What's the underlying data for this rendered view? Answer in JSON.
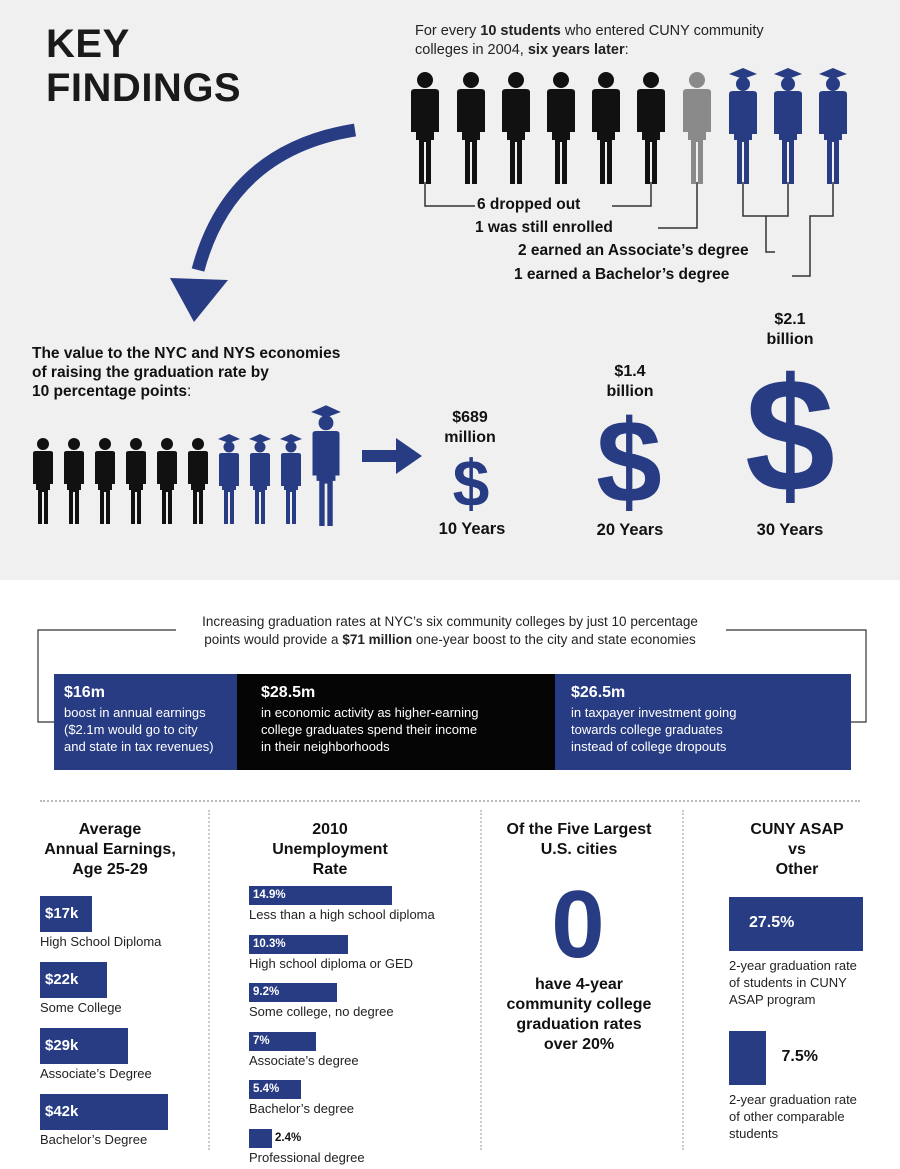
{
  "header": {
    "title_line1": "KEY",
    "title_line2": "FINDINGS"
  },
  "intro": {
    "p1": "For every ",
    "b1": "10 students",
    "p2": " who entered CUNY community colleges in 2004, ",
    "b2": "six years later",
    "p3": ":"
  },
  "outcomes": [
    "6 dropped out",
    "1 was still enrolled",
    "2 earned an Associate’s degree",
    "1 earned a Bachelor’s degree"
  ],
  "value_section": {
    "text_line1": "The value to the NYC and NYS economies",
    "text_line2": "of raising the graduation rate by",
    "text_line3": "10 percentage points",
    "text_colon": ":",
    "impacts": [
      {
        "amount": "$689",
        "unit": "million",
        "years": "10 Years"
      },
      {
        "amount": "$1.4",
        "unit": "billion",
        "years": "20 Years"
      },
      {
        "amount": "$2.1",
        "unit": "billion",
        "years": "30 Years"
      }
    ]
  },
  "boost": {
    "p1": "Increasing graduation rates at NYC’s six community colleges by just 10 percentage",
    "p2": "points would provide a ",
    "b1": "$71 million",
    "p3": " one-year boost to the city and state economies",
    "boxes": [
      {
        "amount": "$16m",
        "line1": "boost in annual earnings",
        "line2": "($2.1m would go to city",
        "line3": "and state in tax revenues)",
        "color": "#283c84"
      },
      {
        "amount": "$28.5m",
        "line1": "in economic activity as higher-earning",
        "line2": "college graduates spend their income",
        "line3": "in their neighborhoods",
        "color": "#050505"
      },
      {
        "amount": "$26.5m",
        "line1": "in taxpayer investment going",
        "line2": "towards college graduates",
        "line3": "instead of college dropouts",
        "color": "#283c84"
      }
    ]
  },
  "earnings": {
    "title1": "Average",
    "title2": "Annual Earnings,",
    "title3": "Age 25-29",
    "items": [
      {
        "value": "$17k",
        "label": "High School Diploma",
        "amount": 17
      },
      {
        "value": "$22k",
        "label": "Some College",
        "amount": 22
      },
      {
        "value": "$29k",
        "label": "Associate’s Degree",
        "amount": 29
      },
      {
        "value": "$42k",
        "label": "Bachelor’s Degree",
        "amount": 42
      }
    ]
  },
  "unemployment": {
    "title1": "2010",
    "title2": "Unemployment",
    "title3": "Rate",
    "items": [
      {
        "value": "14.9%",
        "label": "Less than a high school diploma",
        "pct": 14.9
      },
      {
        "value": "10.3%",
        "label": "High school diploma or GED",
        "pct": 10.3
      },
      {
        "value": "9.2%",
        "label": "Some college, no degree",
        "pct": 9.2
      },
      {
        "value": "7%",
        "label": "Associate’s degree",
        "pct": 7
      },
      {
        "value": "5.4%",
        "label": "Bachelor’s degree",
        "pct": 5.4
      },
      {
        "value": "2.4%",
        "label": "Professional degree",
        "pct": 2.4
      }
    ]
  },
  "cities": {
    "title1": "Of the Five Largest",
    "title2": "U.S. cities",
    "number": "0",
    "text1": "have 4-year",
    "text2": "community college",
    "text3": "graduation rates",
    "text4": "over 20%"
  },
  "asap": {
    "title1": "CUNY ASAP",
    "title2": "vs",
    "title3": "Other",
    "items": [
      {
        "value": "27.5%",
        "label1": "2-year graduation rate",
        "label2": "of students in CUNY",
        "label3": "ASAP program",
        "pct": 27.5
      },
      {
        "value": "7.5%",
        "label1": "2-year graduation rate",
        "label2": "of other comparable",
        "label3": "students",
        "pct": 7.5
      }
    ]
  },
  "colors": {
    "navy": "#283c84",
    "black": "#111111",
    "gray": "#8a8a8a"
  }
}
